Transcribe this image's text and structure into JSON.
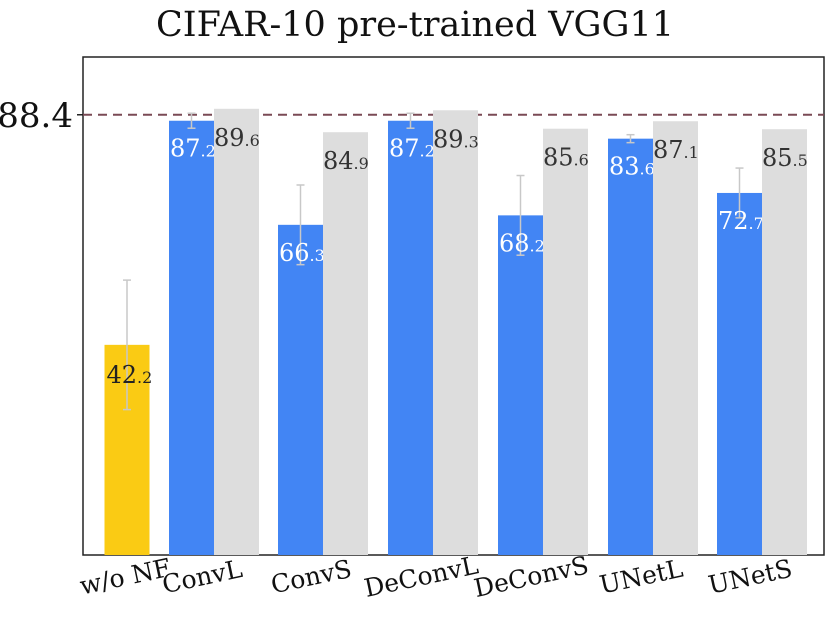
{
  "chart_data": {
    "type": "bar",
    "title": "CIFAR-10 pre-trained VGG11",
    "xlabel": "",
    "ylabel": "",
    "ylim": [
      0,
      100
    ],
    "grid": false,
    "categories": [
      "w/o NF",
      "ConvL",
      "ConvS",
      "DeConvL",
      "DeConvS",
      "UNetL",
      "UNetS"
    ],
    "baseline": {
      "category": "w/o NF",
      "value": 42.2,
      "label": "42.2",
      "error": 13.0,
      "color": "#FACB14"
    },
    "series": [
      {
        "values": [
          null,
          87.2,
          66.3,
          87.2,
          68.2,
          83.6,
          72.7
        ],
        "labels": [
          "",
          "87.2",
          "66.3",
          "87.2",
          "68.2",
          "83.6",
          "72.7"
        ],
        "errors": [
          null,
          1.5,
          8.0,
          1.5,
          8.0,
          0.8,
          5.0
        ],
        "color": "#4285F4"
      },
      {
        "values": [
          null,
          89.6,
          null,
          89.3,
          85.6,
          87.1,
          85.5
        ],
        "labels": [
          "",
          "89.6",
          "",
          "89.3",
          "85.6",
          "87.1",
          "85.5"
        ],
        "color": "#DDDDDD"
      }
    ],
    "conv_s_gray": {
      "value": 84.9,
      "label": "84.9"
    },
    "reference_line": {
      "value": 88.4,
      "label": "88.4",
      "color": "#7A4A55"
    }
  }
}
